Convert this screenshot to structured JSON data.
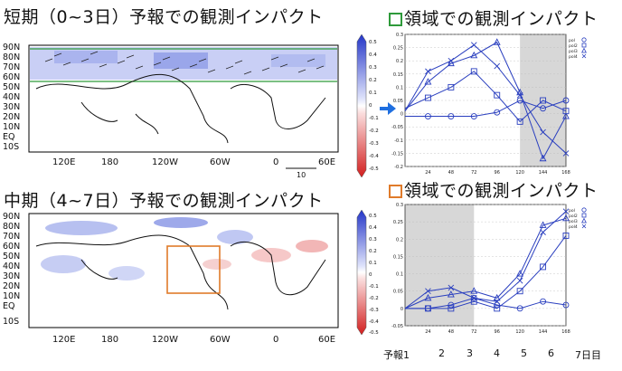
{
  "titles": {
    "short": "短期（0~3日）予報での観測インパクト",
    "mid": "中期（4~7日）予報での観測インパクト",
    "region_green": "領域での観測インパクト",
    "region_orange": "領域での観測インパクト"
  },
  "colors": {
    "green_box": "#2e9a3a",
    "orange_box": "#e07b2a",
    "series_line": "#2a3fbf",
    "shading": "#d7d7d7",
    "arrow": "#1f6fe0"
  },
  "maps": {
    "lat_labels": [
      "90N",
      "80N",
      "70N",
      "60N",
      "50N",
      "40N",
      "30N",
      "20N",
      "10N",
      "EQ",
      "10S"
    ],
    "lon_labels": [
      "120E",
      "180",
      "120W",
      "60W",
      "0",
      "60E"
    ],
    "vector_scale_label": "10",
    "colorbar_labels": [
      "0.5",
      "0.4",
      "0.3",
      "0.2",
      "0.1",
      "0",
      "-0.1",
      "-0.2",
      "-0.3",
      "-0.4",
      "-0.5"
    ]
  },
  "x_axis": {
    "prefix": "予報",
    "days": [
      "1",
      "2",
      "3",
      "4",
      "5",
      "6",
      "7"
    ],
    "suffix": "日目"
  },
  "chart_data": [
    {
      "type": "line",
      "x": [
        0,
        24,
        48,
        72,
        96,
        120,
        144,
        168
      ],
      "xticks": [
        "24",
        "48",
        "72",
        "96",
        "120",
        "144",
        "168"
      ],
      "yticks": [
        "0.3",
        "0.25",
        "0.2",
        "0.15",
        "0.1",
        "0.05",
        "0",
        "-0.05",
        "-0.1",
        "-0.15",
        "-0.2"
      ],
      "ylim": [
        -0.2,
        0.3
      ],
      "legend": [
        "pol",
        "pol2",
        "pol3",
        "pol4"
      ],
      "series": [
        {
          "marker": "circle",
          "values": [
            -0.01,
            -0.01,
            -0.01,
            -0.01,
            0.005,
            0.05,
            0.02,
            0.05
          ]
        },
        {
          "marker": "square",
          "values": [
            0.02,
            0.06,
            0.1,
            0.16,
            0.07,
            -0.03,
            0.05,
            0.01
          ]
        },
        {
          "marker": "triangle",
          "values": [
            0.01,
            0.12,
            0.19,
            0.22,
            0.27,
            0.08,
            -0.17,
            -0.01
          ]
        },
        {
          "marker": "x",
          "values": [
            0.01,
            0.16,
            0.2,
            0.26,
            0.18,
            0.07,
            -0.07,
            -0.15
          ]
        }
      ]
    },
    {
      "type": "line",
      "x": [
        0,
        24,
        48,
        72,
        96,
        120,
        144,
        168
      ],
      "xticks": [
        "24",
        "48",
        "72",
        "96",
        "120",
        "144",
        "168"
      ],
      "yticks": [
        "0.3",
        "0.25",
        "0.2",
        "0.15",
        "0.1",
        "0.05",
        "0",
        "-0.05"
      ],
      "ylim": [
        -0.05,
        0.3
      ],
      "legend": [
        "pol",
        "pol2",
        "pol3",
        "pol4"
      ],
      "series": [
        {
          "marker": "circle",
          "values": [
            0.0,
            0.0,
            0.01,
            0.03,
            0.01,
            0.0,
            0.02,
            0.01
          ]
        },
        {
          "marker": "square",
          "values": [
            0.0,
            0.0,
            0.0,
            0.02,
            0.0,
            0.05,
            0.12,
            0.21
          ]
        },
        {
          "marker": "triangle",
          "values": [
            0.0,
            0.03,
            0.04,
            0.05,
            0.03,
            0.1,
            0.24,
            0.26
          ]
        },
        {
          "marker": "x",
          "values": [
            0.0,
            0.05,
            0.06,
            0.03,
            0.02,
            0.08,
            0.22,
            0.28
          ]
        }
      ]
    }
  ]
}
